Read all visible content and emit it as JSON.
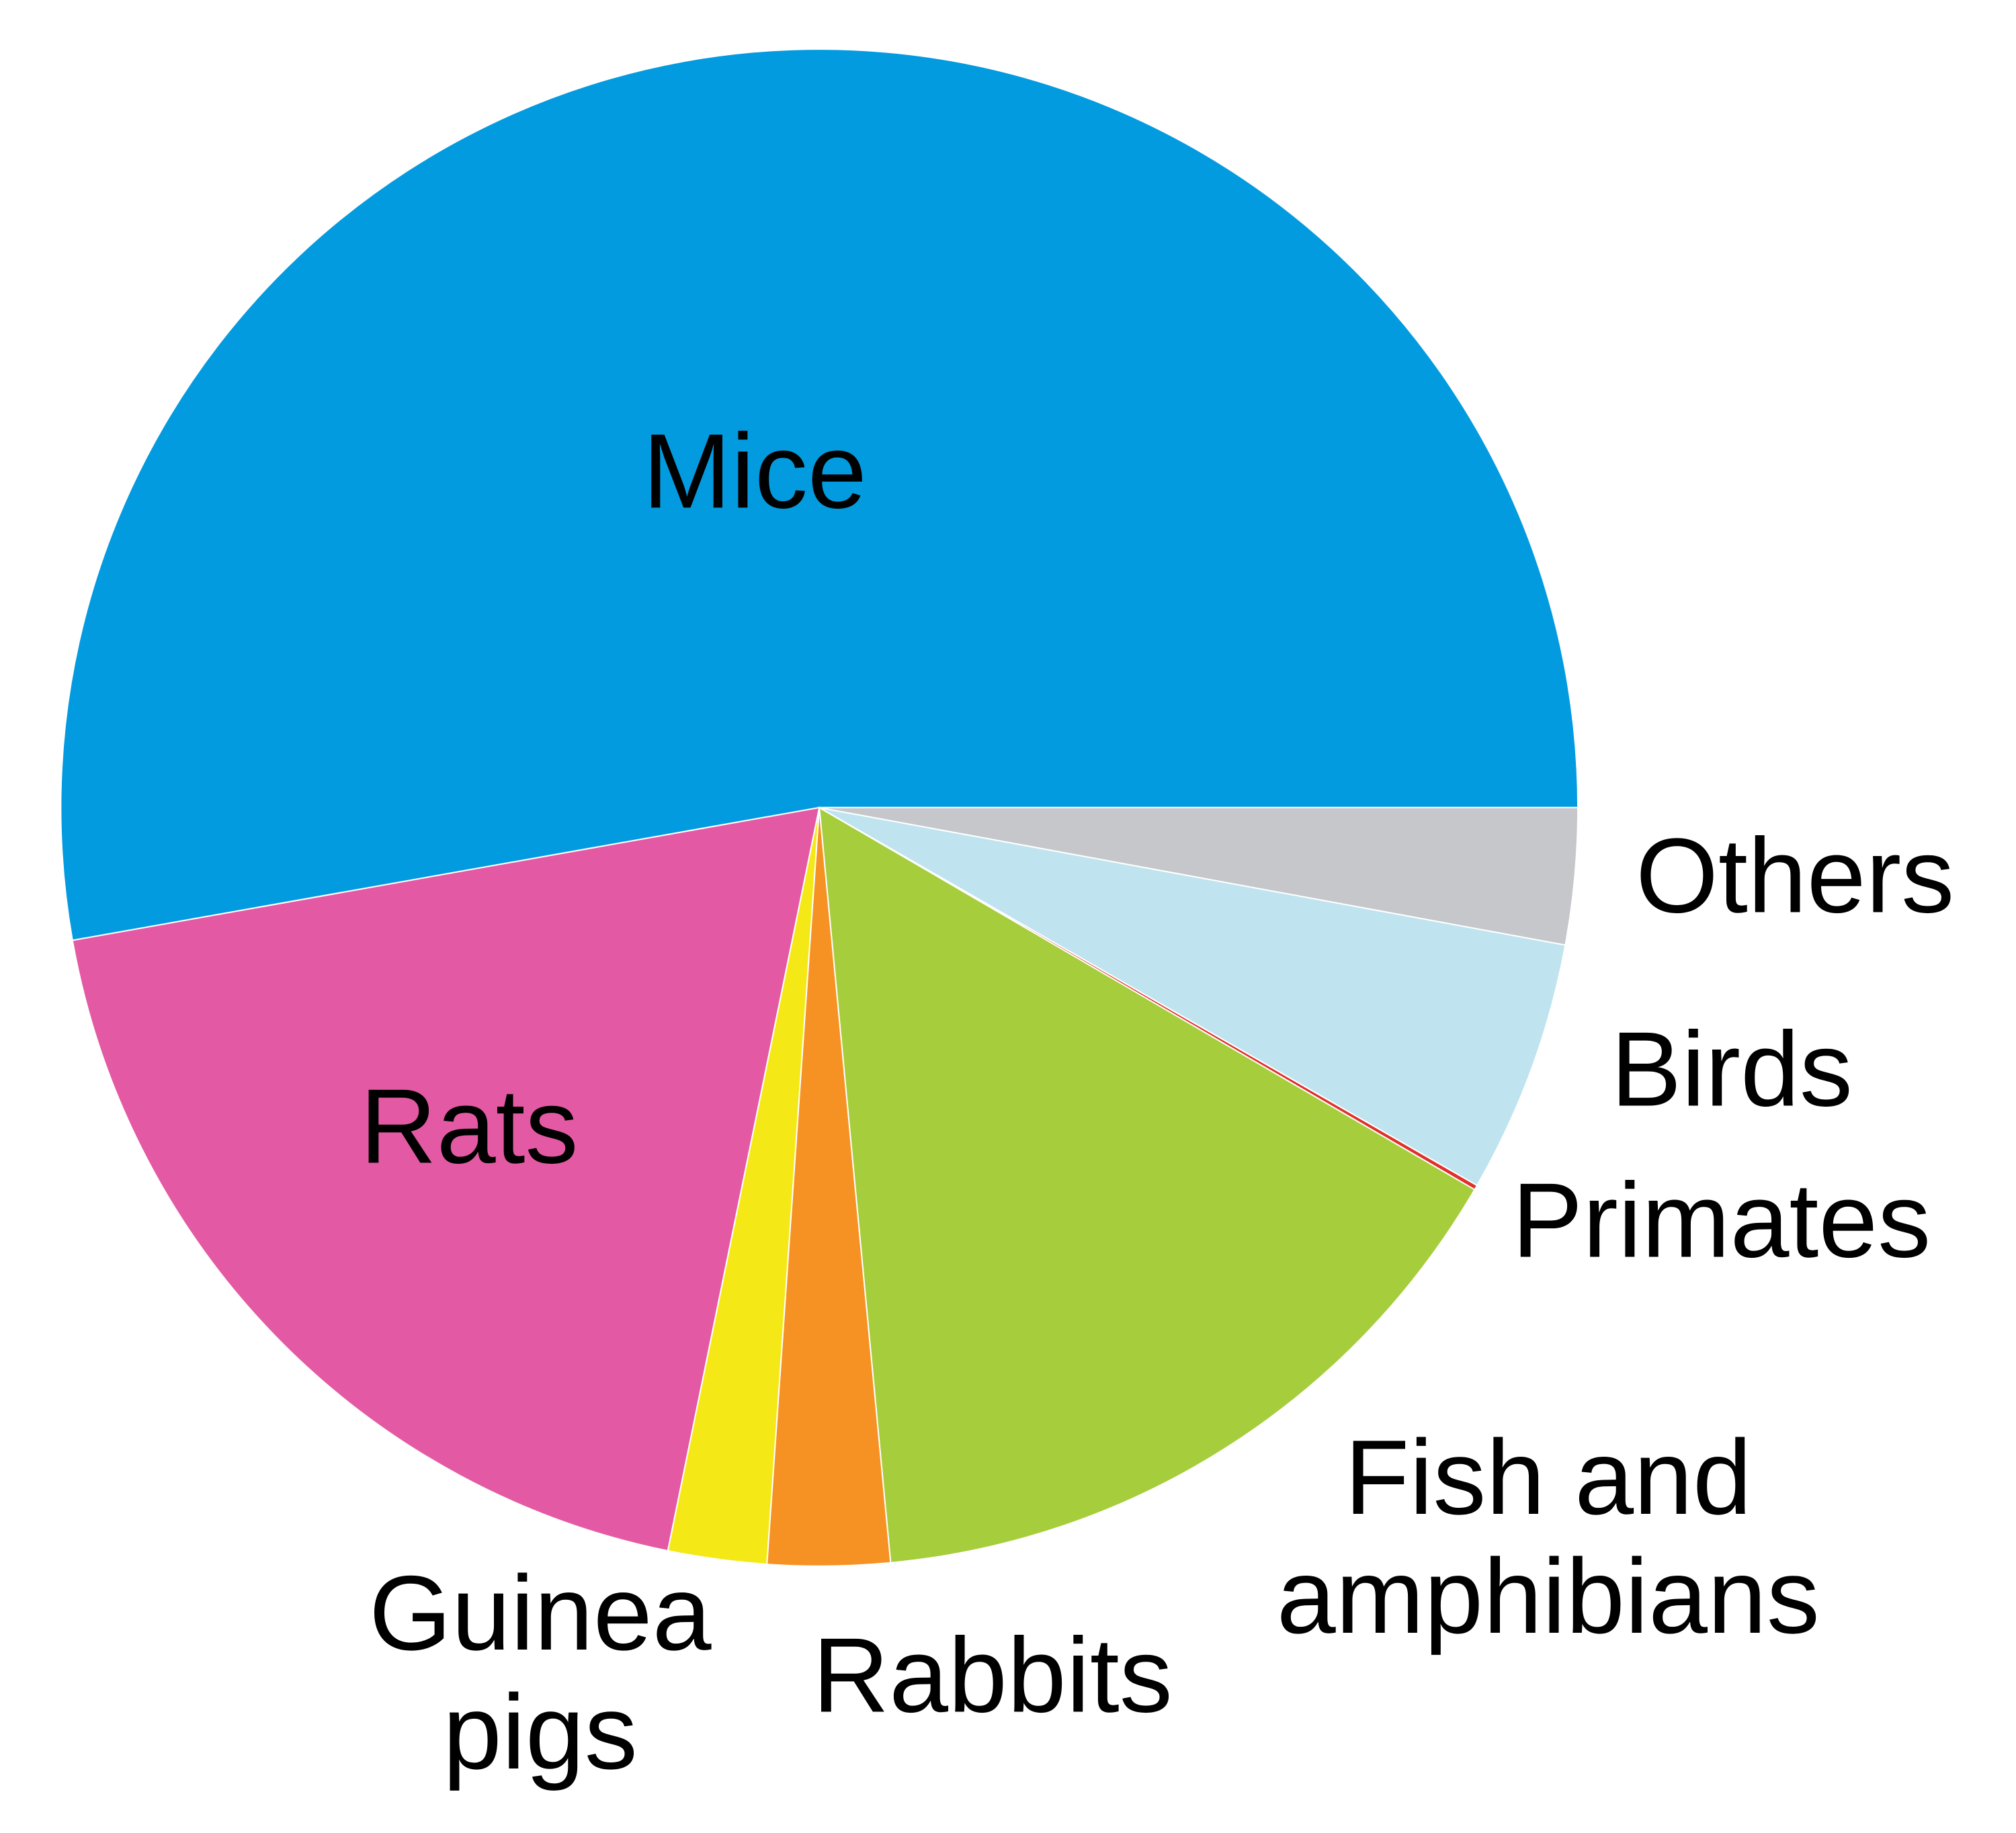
{
  "chart_data": {
    "type": "pie",
    "categories": [
      "Mice",
      "Rats",
      "Guinea pigs",
      "Rabbits",
      "Fish and amphibians",
      "Primates",
      "Birds",
      "Others"
    ],
    "values": [
      52.8,
      19.0,
      2.1,
      2.6,
      15.1,
      0.1,
      5.4,
      2.9
    ],
    "colors": [
      "#039be0",
      "#e459a3",
      "#f4e916",
      "#f69224",
      "#a6cd3c",
      "#e0302b",
      "#bfe4ef",
      "#c6c7cb"
    ],
    "start_angle": 0,
    "direction": "counterclockwise"
  }
}
